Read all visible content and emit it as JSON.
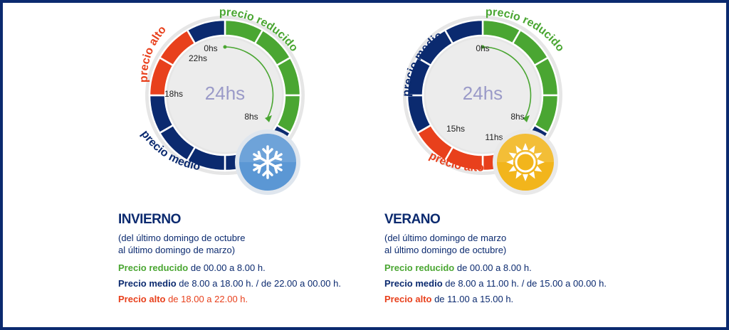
{
  "colors": {
    "green": "#4aa632",
    "blue": "#0b2a6f",
    "red": "#e8401c",
    "center_text": "#9a9ac8",
    "winter_badge": "#5b97d4",
    "summer_badge": "#f2b51c"
  },
  "winter": {
    "title": "INVIERNO",
    "range_line1": "(del último domingo de octubre",
    "range_line2": "al último domingo de marzo)",
    "center": "24hs",
    "hours": {
      "h0": "0hs",
      "h8": "8hs",
      "h18": "18hs",
      "h22": "22hs"
    },
    "arc_labels": {
      "reduced": "precio reducido",
      "mid": "precio medio",
      "high": "precio alto"
    },
    "icon": "snowflake-icon",
    "legend": {
      "reduced_label": "Precio reducido",
      "reduced_text": " de 00.00 a 8.00 h.",
      "mid_label": "Precio medio",
      "mid_text": " de 8.00 a 18.00 h. / de 22.00 a 00.00 h.",
      "high_label": "Precio alto",
      "high_text": " de 18.00 a 22.00 h."
    }
  },
  "summer": {
    "title": "VERANO",
    "range_line1": "(del último domingo de marzo",
    "range_line2": "al último domingo de octubre)",
    "center": "24hs",
    "hours": {
      "h0": "0hs",
      "h8": "8hs",
      "h11": "11hs",
      "h15": "15hs"
    },
    "arc_labels": {
      "reduced": "precio reducido",
      "mid": "precio medio",
      "high": "precio alto"
    },
    "icon": "sun-icon",
    "legend": {
      "reduced_label": "Precio reducido",
      "reduced_text": " de 00.00 a 8.00 h.",
      "mid_label": "Precio medio",
      "mid_text": " de 8.00 a 11.00 h. / de 15.00 a 00.00 h.",
      "high_label": "Precio alto",
      "high_text": " de 11.00 a 15.00 h."
    }
  }
}
